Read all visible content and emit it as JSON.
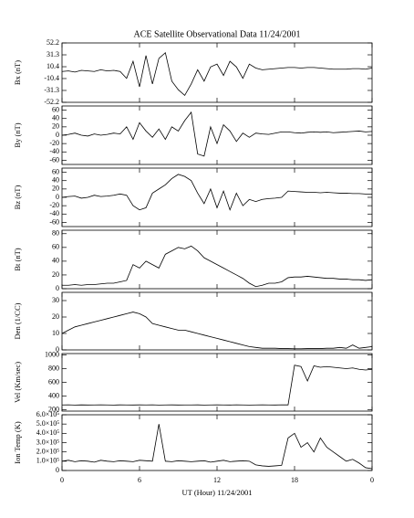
{
  "chart_data": [
    {
      "type": "line",
      "title": "ACE Satellite Observational Data   11/24/2001",
      "ylabel": "Bx (nT)",
      "x": [
        0,
        0.5,
        1,
        1.5,
        2,
        2.5,
        3,
        3.5,
        4,
        4.5,
        5,
        5.5,
        6,
        6.5,
        7,
        7.5,
        8,
        8.5,
        9,
        9.5,
        10,
        10.5,
        11,
        11.5,
        12,
        12.5,
        13,
        13.5,
        14,
        14.5,
        15,
        15.5,
        16,
        16.5,
        17,
        17.5,
        18,
        18.5,
        19,
        19.5,
        20,
        20.5,
        21,
        21.5,
        22,
        22.5,
        23,
        23.5,
        24
      ],
      "values": [
        2,
        3,
        1,
        4,
        3,
        2,
        5,
        3,
        4,
        2,
        -10,
        20,
        -25,
        30,
        -20,
        25,
        35,
        -15,
        -30,
        -40,
        -20,
        5,
        -15,
        10,
        15,
        -5,
        20,
        10,
        -10,
        15,
        8,
        5,
        6,
        7,
        8,
        9,
        9,
        8,
        9,
        9,
        8,
        7,
        6,
        6,
        6,
        7,
        7,
        6,
        8
      ],
      "color": "#000000",
      "ylim": [
        -52.2,
        52.2
      ],
      "yticks": [
        -52.2,
        -31.3,
        -10.4,
        10.4,
        31.3,
        52.2
      ]
    },
    {
      "type": "line",
      "ylabel": "By (nT)",
      "x": [
        0,
        0.5,
        1,
        1.5,
        2,
        2.5,
        3,
        3.5,
        4,
        4.5,
        5,
        5.5,
        6,
        6.5,
        7,
        7.5,
        8,
        8.5,
        9,
        9.5,
        10,
        10.5,
        11,
        11.5,
        12,
        12.5,
        13,
        13.5,
        14,
        14.5,
        15,
        15.5,
        16,
        16.5,
        17,
        17.5,
        18,
        18.5,
        19,
        19.5,
        20,
        20.5,
        21,
        21.5,
        22,
        22.5,
        23,
        23.5,
        24
      ],
      "values": [
        0,
        2,
        5,
        0,
        -2,
        3,
        0,
        2,
        5,
        3,
        20,
        -10,
        30,
        10,
        -5,
        15,
        -10,
        20,
        10,
        35,
        55,
        -45,
        -50,
        20,
        -20,
        25,
        10,
        -15,
        5,
        -5,
        5,
        3,
        2,
        5,
        8,
        8,
        6,
        5,
        7,
        8,
        7,
        8,
        6,
        7,
        8,
        9,
        10,
        8,
        9
      ],
      "color": "#000000",
      "ylim": [
        -70,
        70
      ],
      "yticks": [
        -60,
        -40,
        -20,
        0,
        20,
        40,
        60
      ]
    },
    {
      "type": "line",
      "ylabel": "Bz (nT)",
      "x": [
        0,
        0.5,
        1,
        1.5,
        2,
        2.5,
        3,
        3.5,
        4,
        4.5,
        5,
        5.5,
        6,
        6.5,
        7,
        7.5,
        8,
        8.5,
        9,
        9.5,
        10,
        10.5,
        11,
        11.5,
        12,
        12.5,
        13,
        13.5,
        14,
        14.5,
        15,
        15.5,
        16,
        16.5,
        17,
        17.5,
        18,
        18.5,
        19,
        19.5,
        20,
        20.5,
        21,
        21.5,
        22,
        22.5,
        23,
        23.5,
        24
      ],
      "values": [
        0,
        2,
        3,
        -2,
        0,
        5,
        2,
        3,
        5,
        8,
        5,
        -20,
        -30,
        -25,
        10,
        20,
        30,
        45,
        55,
        50,
        40,
        10,
        -15,
        20,
        -25,
        15,
        -30,
        10,
        -20,
        -5,
        -10,
        -5,
        -3,
        -2,
        0,
        15,
        14,
        13,
        12,
        12,
        11,
        12,
        11,
        10,
        10,
        9,
        9,
        8,
        8
      ],
      "color": "#000000",
      "ylim": [
        -70,
        70
      ],
      "yticks": [
        -60,
        -40,
        -20,
        0,
        20,
        40,
        60
      ]
    },
    {
      "type": "line",
      "ylabel": "Bt (nT)",
      "x": [
        0,
        0.5,
        1,
        1.5,
        2,
        2.5,
        3,
        3.5,
        4,
        4.5,
        5,
        5.5,
        6,
        6.5,
        7,
        7.5,
        8,
        8.5,
        9,
        9.5,
        10,
        10.5,
        11,
        11.5,
        12,
        12.5,
        13,
        13.5,
        14,
        14.5,
        15,
        15.5,
        16,
        16.5,
        17,
        17.5,
        18,
        18.5,
        19,
        19.5,
        20,
        20.5,
        21,
        21.5,
        22,
        22.5,
        23,
        23.5,
        24
      ],
      "values": [
        5,
        5,
        6,
        5,
        6,
        6,
        7,
        8,
        8,
        10,
        12,
        35,
        30,
        40,
        35,
        30,
        50,
        55,
        60,
        58,
        62,
        55,
        45,
        40,
        35,
        30,
        25,
        20,
        15,
        8,
        3,
        5,
        8,
        8,
        10,
        16,
        17,
        17,
        18,
        17,
        16,
        15,
        15,
        14,
        14,
        13,
        13,
        12,
        13
      ],
      "color": "#000000",
      "ylim": [
        0,
        85
      ],
      "yticks": [
        0,
        20,
        40,
        60,
        80
      ]
    },
    {
      "type": "line",
      "ylabel": "Den (1/CC)",
      "x": [
        0,
        0.5,
        1,
        1.5,
        2,
        2.5,
        3,
        3.5,
        4,
        4.5,
        5,
        5.5,
        6,
        6.5,
        7,
        7.5,
        8,
        8.5,
        9,
        9.5,
        10,
        10.5,
        11,
        11.5,
        12,
        12.5,
        13,
        13.5,
        14,
        14.5,
        15,
        15.5,
        16,
        16.5,
        17,
        17.5,
        18,
        18.5,
        19,
        19.5,
        20,
        20.5,
        21,
        21.5,
        22,
        22.5,
        23,
        23.5,
        24
      ],
      "values": [
        10,
        12,
        14,
        15,
        16,
        17,
        18,
        19,
        20,
        21,
        22,
        23,
        22,
        20,
        16,
        15,
        14,
        13,
        12,
        12,
        11,
        10,
        9,
        8,
        7,
        6,
        5,
        4,
        3,
        2,
        1.5,
        1,
        1,
        1,
        0.8,
        0.8,
        0.7,
        0.7,
        0.8,
        0.8,
        0.8,
        1,
        1,
        1.5,
        1,
        3,
        1,
        1.5,
        2
      ],
      "color": "#000000",
      "ylim": [
        0,
        35
      ],
      "yticks": [
        0,
        10,
        20,
        30
      ]
    },
    {
      "type": "line",
      "ylabel": "Vel (Km/sec)",
      "x": [
        0,
        0.5,
        1,
        1.5,
        2,
        2.5,
        3,
        3.5,
        4,
        4.5,
        5,
        5.5,
        6,
        6.5,
        7,
        7.5,
        8,
        8.5,
        9,
        9.5,
        10,
        10.5,
        11,
        11.5,
        12,
        12.5,
        13,
        13.5,
        14,
        14.5,
        15,
        15.5,
        16,
        16.5,
        17,
        17.5,
        18,
        18.5,
        19,
        19.5,
        20,
        20.5,
        21,
        21.5,
        22,
        22.5,
        23,
        23.5,
        24
      ],
      "values": [
        270,
        272,
        268,
        271,
        269,
        270,
        272,
        270,
        268,
        271,
        270,
        269,
        271,
        270,
        272,
        268,
        270,
        271,
        269,
        270,
        270,
        271,
        268,
        270,
        272,
        270,
        269,
        271,
        270,
        268,
        270,
        271,
        270,
        269,
        272,
        271,
        850,
        830,
        620,
        840,
        820,
        830,
        820,
        810,
        800,
        810,
        790,
        780,
        790
      ],
      "color": "#000000",
      "ylim": [
        180,
        1020
      ],
      "yticks": [
        200,
        400,
        600,
        800,
        1000
      ]
    },
    {
      "type": "line",
      "ylabel": "Ion Temp (K)",
      "xlabel": "UT (Hour)  11/24/2001",
      "x": [
        0,
        0.5,
        1,
        1.5,
        2,
        2.5,
        3,
        3.5,
        4,
        4.5,
        5,
        5.5,
        6,
        6.5,
        7,
        7.5,
        8,
        8.5,
        9,
        9.5,
        10,
        10.5,
        11,
        11.5,
        12,
        12.5,
        13,
        13.5,
        14,
        14.5,
        15,
        15.5,
        16,
        16.5,
        17,
        17.5,
        18,
        18.5,
        19,
        19.5,
        20,
        20.5,
        21,
        21.5,
        22,
        22.5,
        23,
        23.5,
        24
      ],
      "values": [
        100000,
        110000,
        95000,
        105000,
        100000,
        90000,
        110000,
        100000,
        95000,
        105000,
        100000,
        95000,
        110000,
        105000,
        100000,
        500000,
        100000,
        95000,
        105000,
        100000,
        95000,
        100000,
        105000,
        90000,
        100000,
        110000,
        95000,
        100000,
        105000,
        100000,
        60000,
        50000,
        45000,
        50000,
        55000,
        350000,
        400000,
        250000,
        300000,
        200000,
        350000,
        250000,
        200000,
        150000,
        100000,
        120000,
        80000,
        30000,
        20000
      ],
      "color": "#000000",
      "ylim": [
        0,
        600000
      ],
      "yticks": [
        0,
        {
          "value": 100000,
          "label": "1.0×10⁵"
        },
        {
          "value": 200000,
          "label": "2.0×10⁵"
        },
        {
          "value": 300000,
          "label": "3.0×10⁵"
        },
        {
          "value": 400000,
          "label": "4.0×10⁵"
        },
        {
          "value": 500000,
          "label": "5.0×10⁵"
        },
        {
          "value": 600000,
          "label": "6.0×10⁵"
        }
      ],
      "xlim": [
        0,
        24
      ],
      "xticks": [
        0,
        6,
        12,
        18,
        {
          "value": 24,
          "label": "0"
        }
      ]
    }
  ]
}
